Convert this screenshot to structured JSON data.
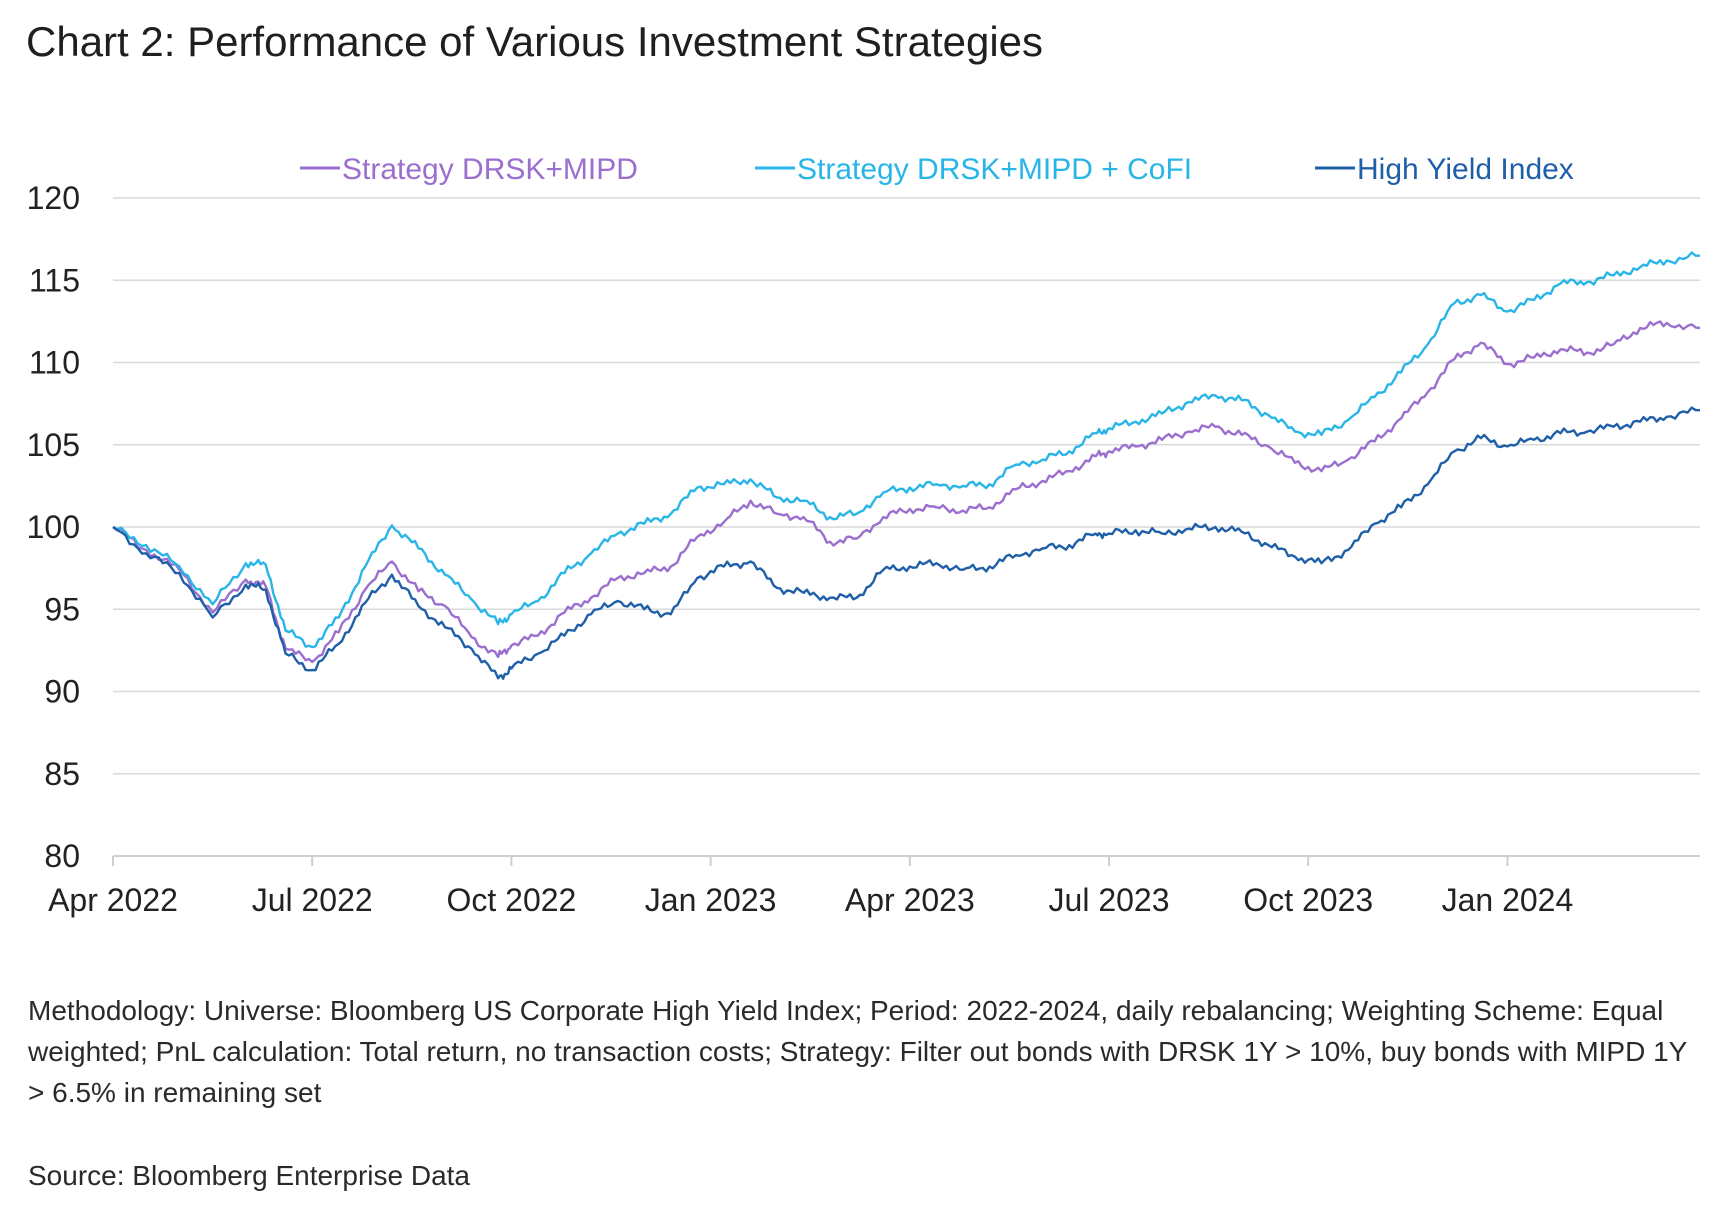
{
  "title": "Chart 2: Performance of Various Investment Strategies",
  "notes": "Methodology: Universe: Bloomberg US Corporate High Yield Index; Period: 2022-2024, daily rebalancing; Weighting Scheme: Equal weighted; PnL calculation: Total return, no transaction costs; Strategy: Filter out bonds with DRSK 1Y > 10%, buy bonds with MIPD 1Y > 6.5% in remaining set",
  "source": "Source: Bloomberg Enterprise Data",
  "chart_data": {
    "type": "line",
    "title": "Chart 2: Performance of Various Investment Strategies",
    "xlabel": "",
    "ylabel": "",
    "ylim": [
      80,
      120
    ],
    "yticks": [
      80,
      85,
      90,
      95,
      100,
      105,
      110,
      115,
      120
    ],
    "grid": true,
    "legend_position": "top",
    "x_unit": "months since Apr 2022",
    "xlim": [
      0,
      23.9
    ],
    "xtick_positions": [
      0,
      3,
      6,
      9,
      12,
      15,
      18,
      21
    ],
    "xtick_labels": [
      "Apr 2022",
      "Jul 2022",
      "Oct 2022",
      "Jan 2023",
      "Apr 2023",
      "Jul 2023",
      "Oct 2023",
      "Jan 2024"
    ],
    "x": [
      0,
      0.5,
      1,
      1.5,
      2,
      2.3,
      2.6,
      3,
      3.4,
      3.8,
      4.2,
      4.6,
      5,
      5.4,
      5.8,
      6,
      6.4,
      6.8,
      7.2,
      7.6,
      8,
      8.4,
      8.8,
      9.2,
      9.6,
      10,
      10.4,
      10.8,
      11.2,
      11.6,
      12,
      12.4,
      12.8,
      13.2,
      13.6,
      14,
      14.4,
      14.8,
      15,
      15.4,
      15.8,
      16.2,
      16.6,
      17,
      17.4,
      17.8,
      18.2,
      18.6,
      19,
      19.4,
      19.8,
      20.2,
      20.6,
      21,
      21.4,
      21.8,
      22.2,
      22.6,
      23,
      23.4,
      23.9
    ],
    "series": [
      {
        "name": "Strategy DRSK+MIPD",
        "color": "#9b6fcf",
        "values": [
          100,
          98.6,
          97.4,
          94.8,
          96.8,
          96.4,
          92.6,
          91.8,
          93.6,
          96.2,
          97.9,
          96.1,
          95.2,
          93.3,
          92.1,
          92.8,
          93.4,
          94.8,
          95.7,
          96.9,
          97.2,
          97.6,
          99.4,
          100.3,
          101.6,
          100.8,
          100.6,
          99.1,
          99.3,
          100.6,
          101.1,
          101.2,
          101.0,
          101.2,
          102.3,
          102.8,
          103.4,
          104.3,
          104.6,
          104.9,
          105.3,
          105.8,
          106.1,
          105.6,
          104.9,
          103.9,
          103.4,
          104.1,
          105.2,
          106.6,
          108.2,
          110.2,
          111.2,
          109.9,
          110.3,
          110.8,
          110.6,
          111.1,
          112.1,
          112.4,
          112.1
        ]
      },
      {
        "name": "Strategy DRSK+MIPD + CoFI",
        "color": "#29b5e8",
        "values": [
          100,
          98.9,
          97.6,
          95.3,
          97.8,
          97.7,
          93.7,
          92.7,
          94.5,
          97.6,
          100.1,
          98.7,
          97.1,
          95.6,
          94.1,
          94.7,
          95.5,
          97.2,
          98.4,
          99.6,
          100.2,
          100.8,
          102.4,
          102.6,
          102.9,
          101.8,
          101.6,
          100.6,
          100.8,
          102.1,
          102.4,
          102.6,
          102.5,
          102.6,
          103.8,
          104.1,
          104.6,
          105.7,
          106.0,
          106.4,
          106.9,
          107.6,
          108.0,
          107.7,
          106.8,
          105.8,
          105.6,
          106.5,
          107.9,
          109.4,
          111.1,
          113.6,
          114.1,
          113.1,
          113.8,
          114.8,
          114.9,
          115.3,
          115.8,
          116.2,
          116.5
        ]
      },
      {
        "name": "High Yield Index",
        "color": "#1f5fa8",
        "values": [
          100,
          98.4,
          97.2,
          94.5,
          96.5,
          96.2,
          92.3,
          91.3,
          92.9,
          95.4,
          97.1,
          95.2,
          93.9,
          92.6,
          90.8,
          91.4,
          92.3,
          93.4,
          94.7,
          95.5,
          95.0,
          94.7,
          96.9,
          97.6,
          97.9,
          96.3,
          96.0,
          95.7,
          95.7,
          97.4,
          97.6,
          97.8,
          97.4,
          97.6,
          98.3,
          98.7,
          98.9,
          99.6,
          99.6,
          99.8,
          99.6,
          99.9,
          100.0,
          99.7,
          98.9,
          98.2,
          97.8,
          98.6,
          100.2,
          101.2,
          102.6,
          104.6,
          105.4,
          104.9,
          105.3,
          105.7,
          105.8,
          106.1,
          106.4,
          106.7,
          107.1
        ]
      }
    ]
  }
}
